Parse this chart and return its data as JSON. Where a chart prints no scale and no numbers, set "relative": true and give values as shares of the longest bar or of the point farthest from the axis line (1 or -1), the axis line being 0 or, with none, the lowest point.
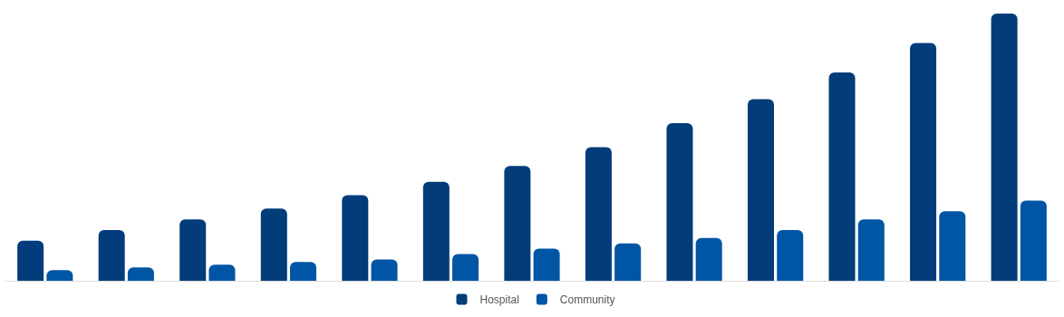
{
  "chart_data": {
    "type": "bar",
    "relative": true,
    "categories": [
      null,
      null,
      null,
      null,
      null,
      null,
      null,
      null,
      null,
      null,
      null,
      null,
      null
    ],
    "series": [
      {
        "name": "Hospital",
        "color": "#023c7a",
        "values": [
          0.15,
          0.19,
          0.23,
          0.27,
          0.32,
          0.37,
          0.43,
          0.5,
          0.59,
          0.68,
          0.78,
          0.89,
          1
        ]
      },
      {
        "name": "Community",
        "color": "#0055a5",
        "values": [
          0.04,
          0.05,
          0.06,
          0.07,
          0.08,
          0.1,
          0.12,
          0.14,
          0.16,
          0.19,
          0.23,
          0.26,
          0.3
        ]
      }
    ],
    "legend": "bottom"
  }
}
